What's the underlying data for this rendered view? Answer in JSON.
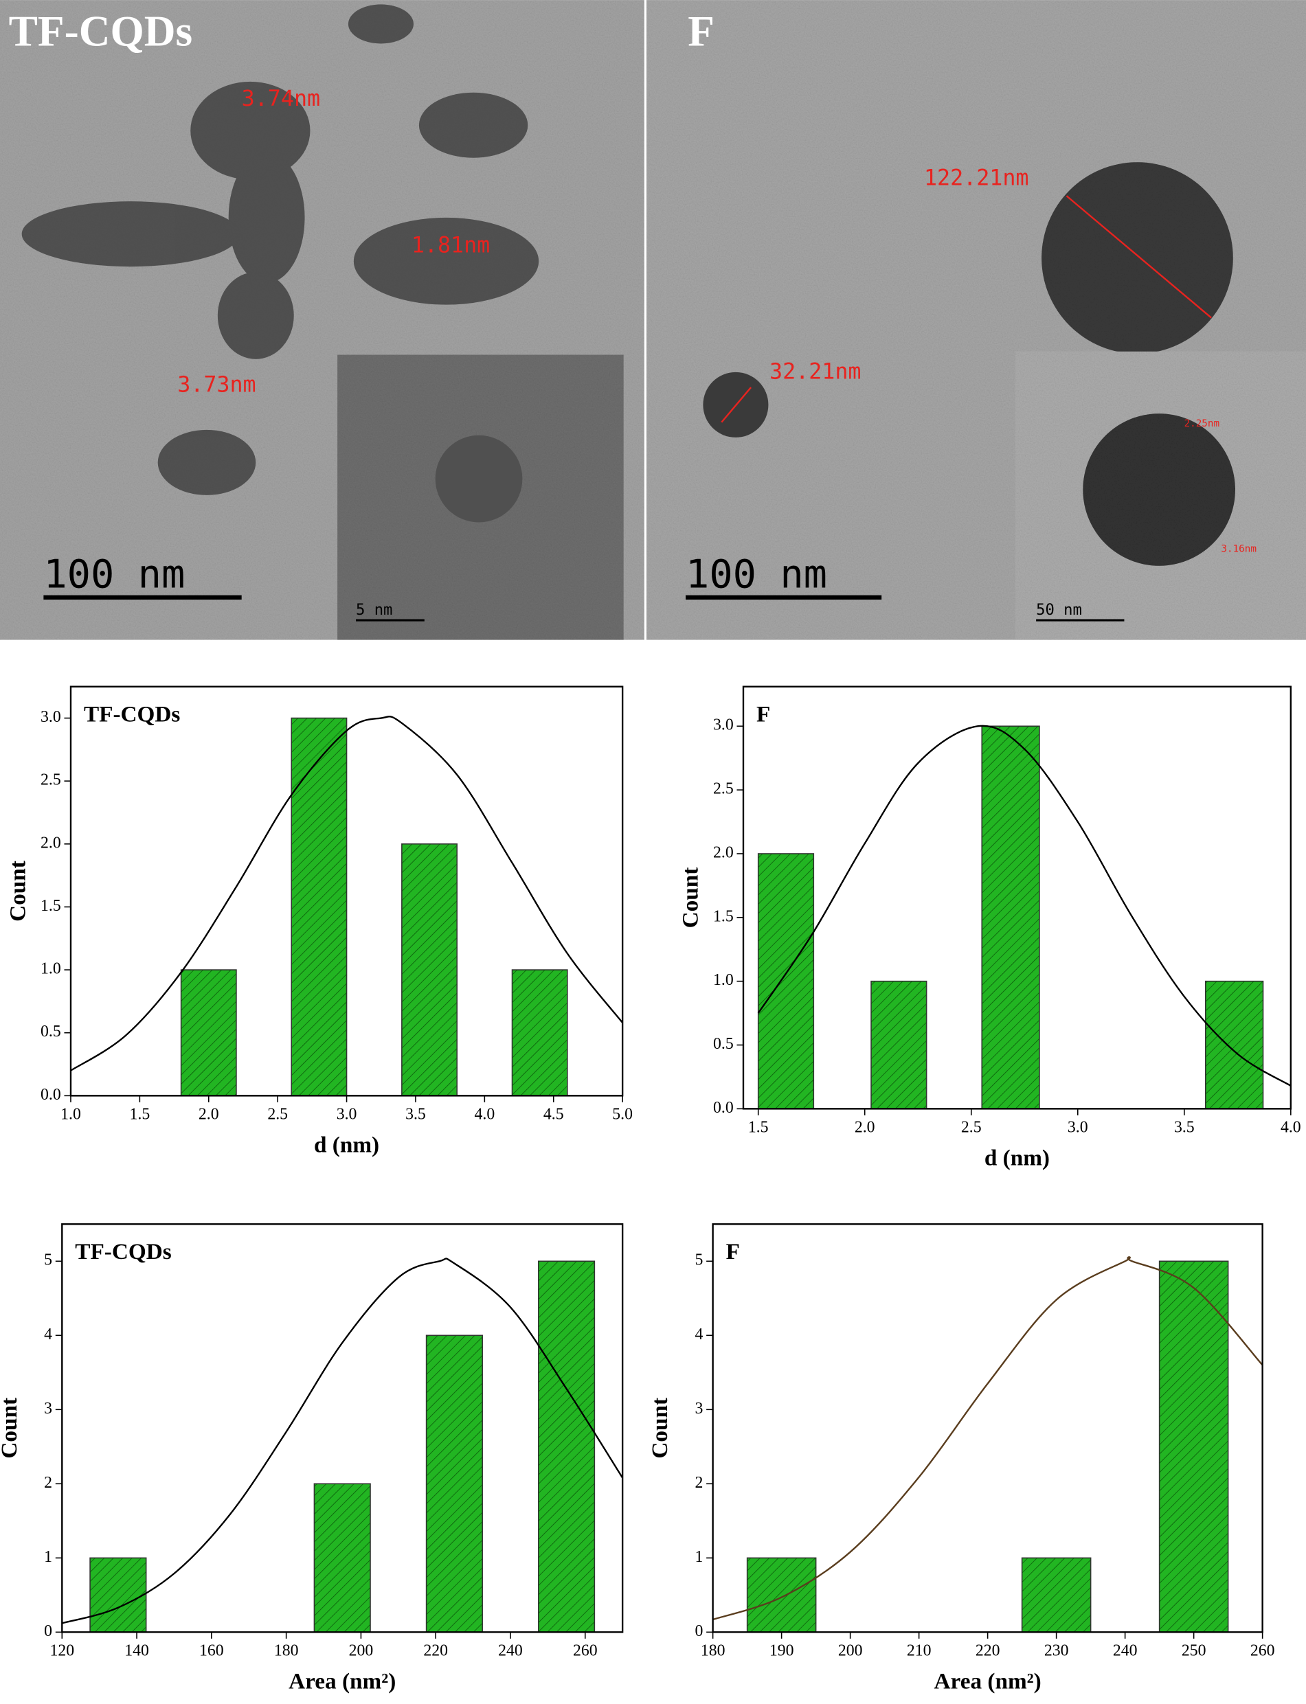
{
  "panels": [
    {
      "label": "TF-CQDs",
      "measurements": [
        "3.74nm",
        "1.81nm",
        "3.73nm"
      ],
      "scale_bar": "100 nm",
      "inset_scale_bar": "5 nm"
    },
    {
      "label": "F",
      "measurements": [
        "122.21nm",
        "32.21nm"
      ],
      "inset_measurements": [
        "2.25nm",
        "3.16nm"
      ],
      "scale_bar": "100 nm",
      "inset_scale_bar": "50 nm"
    }
  ],
  "chart_data": [
    {
      "type": "histogram",
      "title": "TF-CQDs",
      "xlabel": "d (nm)",
      "ylabel": "Count",
      "color": "#22b522",
      "bins": [
        1.8,
        2.2,
        2.6,
        3.0,
        3.4,
        3.8,
        4.2,
        4.6
      ],
      "values": [
        1,
        0,
        3,
        0,
        2,
        0,
        1
      ],
      "fit": {
        "color": "#000000",
        "x": [
          1.0,
          1.4,
          1.8,
          2.2,
          2.6,
          3.0,
          3.25,
          3.4,
          3.8,
          4.2,
          4.6,
          5.0
        ],
        "values": [
          0.2,
          0.48,
          0.98,
          1.66,
          2.39,
          2.9,
          3.0,
          2.96,
          2.55,
          1.85,
          1.13,
          0.58
        ]
      },
      "xlim": [
        1.0,
        5.0
      ],
      "ylim": [
        0,
        3.25
      ],
      "xticks": [
        {
          "value": 1.0,
          "label": "1.0"
        },
        1.5,
        {
          "value": 2.0,
          "label": "2.0"
        },
        2.5,
        {
          "value": 3.0,
          "label": "3.0"
        },
        3.5,
        {
          "value": 4.0,
          "label": "4.0"
        },
        4.5,
        {
          "value": 5.0,
          "label": "5.0"
        }
      ],
      "yticks": [
        {
          "value": 0,
          "label": "0.0"
        },
        0.5,
        {
          "value": 1.0,
          "label": "1.0"
        },
        1.5,
        {
          "value": 2.0,
          "label": "2.0"
        },
        2.5,
        {
          "value": 3.0,
          "label": "3.0"
        }
      ]
    },
    {
      "type": "histogram",
      "title": "F",
      "xlabel": "d (nm)",
      "ylabel": "Count",
      "color": "#22b522",
      "bins": [
        1.5,
        1.76,
        2.03,
        2.29,
        2.55,
        2.82,
        3.08,
        3.34,
        3.6,
        3.87
      ],
      "values": [
        2,
        0,
        1,
        0,
        3,
        0,
        0,
        0,
        1
      ],
      "fit": {
        "color": "#000000",
        "x": [
          1.5,
          1.75,
          2.0,
          2.25,
          2.53,
          2.75,
          3.0,
          3.25,
          3.5,
          3.75,
          4.0
        ],
        "values": [
          0.75,
          1.36,
          2.08,
          2.71,
          3.0,
          2.82,
          2.25,
          1.52,
          0.88,
          0.43,
          0.18
        ]
      },
      "xlim": [
        1.43,
        4.0
      ],
      "ylim": [
        0,
        3.31
      ],
      "xticks": [
        1.5,
        {
          "value": 2.0,
          "label": "2.0"
        },
        2.5,
        {
          "value": 3.0,
          "label": "3.0"
        },
        3.5,
        {
          "value": 4.0,
          "label": "4.0"
        }
      ],
      "yticks": [
        {
          "value": 0,
          "label": "0.0"
        },
        0.5,
        {
          "value": 1.0,
          "label": "1.0"
        },
        1.5,
        {
          "value": 2.0,
          "label": "2.0"
        },
        2.5,
        {
          "value": 3.0,
          "label": "3.0"
        }
      ]
    },
    {
      "type": "histogram",
      "title": "TF-CQDs",
      "xlabel": "Area (nm²)",
      "ylabel": "Count",
      "color": "#22b522",
      "bins": [
        127.5,
        142.5,
        157.5,
        172.5,
        187.5,
        202.5,
        217.5,
        232.5,
        247.5,
        262.5
      ],
      "values": [
        1,
        0,
        0,
        0,
        2,
        0,
        4,
        0,
        5
      ],
      "fit": {
        "color": "#000000",
        "x": [
          120,
          135,
          150,
          165,
          180,
          195,
          210,
          221,
          225,
          240,
          255,
          270
        ],
        "values": [
          0.12,
          0.33,
          0.79,
          1.59,
          2.7,
          3.9,
          4.78,
          5,
          4.97,
          4.38,
          3.28,
          2.08
        ]
      },
      "xlim": [
        120,
        270
      ],
      "ylim": [
        0,
        5.5
      ],
      "xticks": [
        120,
        140,
        160,
        180,
        200,
        220,
        240,
        260
      ],
      "yticks": [
        0,
        1,
        2,
        3,
        4,
        5
      ]
    },
    {
      "type": "histogram",
      "title": "F",
      "xlabel": "Area (nm²)",
      "ylabel": "Count",
      "color": "#22b522",
      "bins": [
        185,
        195,
        205,
        215,
        225,
        235,
        245,
        255
      ],
      "values": [
        1,
        0,
        0,
        0,
        1,
        0,
        5
      ],
      "fit": {
        "color": "#5a3d1e",
        "x": [
          180,
          190,
          200,
          210,
          220,
          230,
          240,
          241,
          250,
          260
        ],
        "values": [
          0.17,
          0.47,
          1.08,
          2.09,
          3.35,
          4.48,
          5.0,
          5,
          4.64,
          3.6
        ]
      },
      "xlim": [
        180,
        260
      ],
      "ylim": [
        0,
        5.5
      ],
      "xticks": [
        180,
        190,
        200,
        210,
        220,
        230,
        240,
        250,
        260
      ],
      "yticks": [
        0,
        1,
        2,
        3,
        4,
        5
      ]
    }
  ]
}
